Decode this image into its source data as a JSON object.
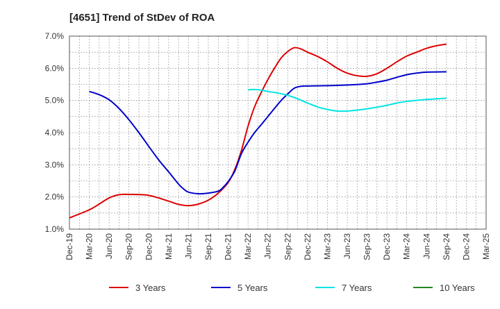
{
  "chart_data": {
    "type": "line",
    "title": "[4651]  Trend of StDev of ROA",
    "x_ticks": [
      "Dec-19",
      "Mar-20",
      "Jun-20",
      "Sep-20",
      "Dec-20",
      "Mar-21",
      "Jun-21",
      "Sep-21",
      "Dec-21",
      "Mar-22",
      "Jun-22",
      "Sep-22",
      "Dec-22",
      "Mar-23",
      "Jun-23",
      "Sep-23",
      "Dec-23",
      "Mar-24",
      "Jun-24",
      "Sep-24",
      "Dec-24",
      "Mar-25"
    ],
    "y_ticks": [
      "1.0%",
      "2.0%",
      "3.0%",
      "4.0%",
      "5.0%",
      "6.0%",
      "7.0%"
    ],
    "ylim": [
      1.0,
      7.0
    ],
    "grid": true,
    "legend_position": "bottom",
    "series": [
      {
        "name": "3 Years",
        "color": "#dd0000",
        "points": [
          [
            0,
            1.35
          ],
          [
            1,
            1.6
          ],
          [
            1.5,
            1.78
          ],
          [
            2,
            1.97
          ],
          [
            2.5,
            2.07
          ],
          [
            3,
            2.08
          ],
          [
            4,
            2.05
          ],
          [
            5,
            1.87
          ],
          [
            5.5,
            1.77
          ],
          [
            6,
            1.73
          ],
          [
            6.5,
            1.78
          ],
          [
            7,
            1.9
          ],
          [
            7.5,
            2.12
          ],
          [
            8,
            2.45
          ],
          [
            8.33,
            2.85
          ],
          [
            8.67,
            3.45
          ],
          [
            9,
            4.2
          ],
          [
            9.33,
            4.8
          ],
          [
            9.67,
            5.25
          ],
          [
            10,
            5.65
          ],
          [
            10.33,
            6.0
          ],
          [
            10.67,
            6.32
          ],
          [
            11,
            6.52
          ],
          [
            11.33,
            6.64
          ],
          [
            11.67,
            6.6
          ],
          [
            12,
            6.5
          ],
          [
            12.5,
            6.37
          ],
          [
            13,
            6.2
          ],
          [
            13.5,
            6.0
          ],
          [
            14,
            5.85
          ],
          [
            14.5,
            5.77
          ],
          [
            15,
            5.75
          ],
          [
            15.5,
            5.83
          ],
          [
            16,
            6.0
          ],
          [
            16.5,
            6.2
          ],
          [
            17,
            6.38
          ],
          [
            17.5,
            6.5
          ],
          [
            18,
            6.62
          ],
          [
            18.5,
            6.7
          ],
          [
            19,
            6.75
          ]
        ]
      },
      {
        "name": "5 Years",
        "color": "#0000cc",
        "points": [
          [
            1,
            5.28
          ],
          [
            1.5,
            5.18
          ],
          [
            2,
            5.02
          ],
          [
            2.5,
            4.75
          ],
          [
            3,
            4.4
          ],
          [
            3.5,
            4.0
          ],
          [
            4,
            3.57
          ],
          [
            4.5,
            3.15
          ],
          [
            5,
            2.78
          ],
          [
            5.5,
            2.4
          ],
          [
            5.75,
            2.25
          ],
          [
            6,
            2.15
          ],
          [
            6.5,
            2.1
          ],
          [
            7,
            2.12
          ],
          [
            7.5,
            2.18
          ],
          [
            7.75,
            2.3
          ],
          [
            8,
            2.48
          ],
          [
            8.33,
            2.8
          ],
          [
            8.67,
            3.35
          ],
          [
            9,
            3.7
          ],
          [
            9.33,
            4.0
          ],
          [
            9.67,
            4.25
          ],
          [
            10,
            4.5
          ],
          [
            10.33,
            4.75
          ],
          [
            10.67,
            5.0
          ],
          [
            11,
            5.2
          ],
          [
            11.33,
            5.38
          ],
          [
            11.67,
            5.44
          ],
          [
            12,
            5.45
          ],
          [
            13,
            5.46
          ],
          [
            14,
            5.48
          ],
          [
            15,
            5.52
          ],
          [
            15.5,
            5.57
          ],
          [
            16,
            5.63
          ],
          [
            16.5,
            5.72
          ],
          [
            17,
            5.8
          ],
          [
            17.5,
            5.85
          ],
          [
            18,
            5.88
          ],
          [
            19,
            5.89
          ]
        ]
      },
      {
        "name": "7 Years",
        "color": "#00e5e5",
        "points": [
          [
            9,
            5.33
          ],
          [
            9.33,
            5.34
          ],
          [
            9.67,
            5.32
          ],
          [
            10,
            5.28
          ],
          [
            10.5,
            5.23
          ],
          [
            11,
            5.16
          ],
          [
            11.5,
            5.05
          ],
          [
            12,
            4.92
          ],
          [
            12.5,
            4.8
          ],
          [
            13,
            4.72
          ],
          [
            13.5,
            4.67
          ],
          [
            14,
            4.67
          ],
          [
            14.5,
            4.7
          ],
          [
            15,
            4.74
          ],
          [
            15.5,
            4.79
          ],
          [
            16,
            4.85
          ],
          [
            16.5,
            4.92
          ],
          [
            17,
            4.97
          ],
          [
            18,
            5.03
          ],
          [
            19,
            5.07
          ]
        ]
      },
      {
        "name": "10 Years",
        "color": "#228822",
        "points": []
      }
    ]
  }
}
